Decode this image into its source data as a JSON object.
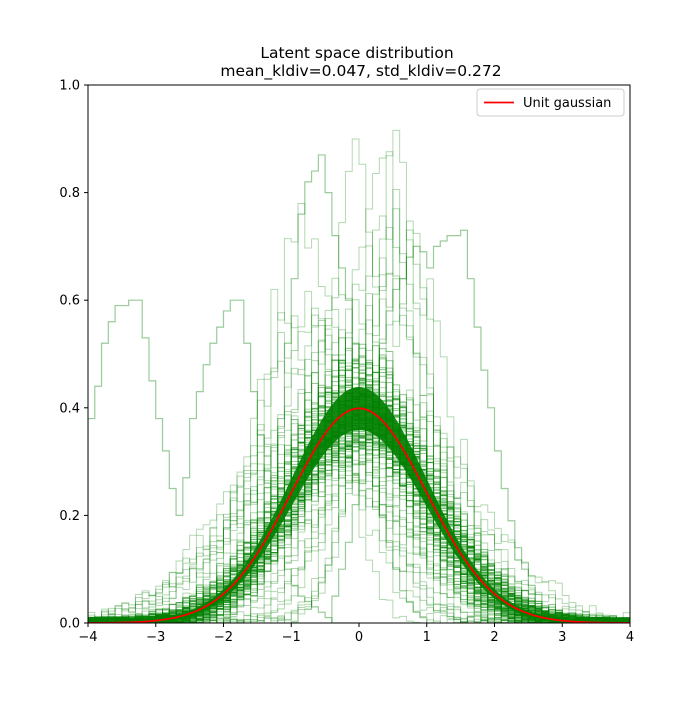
{
  "chart_data": {
    "type": "line",
    "title": "Latent space distribution",
    "subtitle": "mean_kldiv=0.047, std_kldiv=0.272",
    "xlabel": "",
    "ylabel": "",
    "xlim": [
      -4,
      4
    ],
    "ylim": [
      0,
      1.0
    ],
    "xticks": [
      "−4",
      "−3",
      "−2",
      "−1",
      "0",
      "1",
      "2",
      "3",
      "4"
    ],
    "yticks": [
      "0.0",
      "0.2",
      "0.4",
      "0.6",
      "0.8",
      "1.0"
    ],
    "grid": false,
    "legend_position": "top-right",
    "bin_width": 0.1,
    "colors": {
      "histogram": "#008000",
      "reference": "#ff0000"
    },
    "series": [
      {
        "name": "Unit gaussian",
        "kind": "line",
        "color": "#ff0000",
        "x": [
          -4,
          -3.5,
          -3,
          -2.5,
          -2,
          -1.5,
          -1,
          -0.5,
          0,
          0.5,
          1,
          1.5,
          2,
          2.5,
          3,
          3.5,
          4
        ],
        "y": [
          0.0001,
          0.0009,
          0.0044,
          0.0175,
          0.054,
          0.1295,
          0.242,
          0.352,
          0.399,
          0.352,
          0.242,
          0.1295,
          0.054,
          0.0175,
          0.0044,
          0.0009,
          0.0001
        ]
      }
    ],
    "histograms": [
      {
        "kind": "step",
        "color": "#008000",
        "note": "bimodal outlier",
        "bin_centers": [
          -3.95,
          -3.85,
          -3.75,
          -3.65,
          -3.55,
          -3.45,
          -3.35,
          -3.25,
          -3.15,
          -3.05,
          -2.95,
          -2.85,
          -2.75,
          -2.65,
          -2.55,
          -2.45,
          -2.35,
          -2.25,
          -2.15,
          -2.05,
          -1.95,
          -1.85,
          -1.75,
          -1.65,
          -1.55,
          -1.45,
          -1.35,
          -1.25,
          -1.15,
          -1.05,
          -0.95,
          -0.85,
          -0.75,
          -0.65,
          -0.55,
          -0.45,
          -0.35,
          -0.25,
          -0.15,
          -0.05
        ],
        "density": [
          0.38,
          0.44,
          0.52,
          0.56,
          0.59,
          0.59,
          0.6,
          0.6,
          0.53,
          0.45,
          0.38,
          0.32,
          0.25,
          0.2,
          0.27,
          0.38,
          0.43,
          0.48,
          0.52,
          0.55,
          0.58,
          0.6,
          0.6,
          0.52,
          0.43,
          0.35,
          0.26,
          0.2,
          0.14,
          0.1,
          0.07,
          0.05,
          0.04,
          0.03,
          0.02,
          0.01,
          0.0,
          0.0,
          0.0,
          0.0
        ]
      },
      {
        "kind": "step",
        "color": "#008000",
        "note": "right-shifted outlier",
        "bin_centers": [
          -0.35,
          -0.25,
          -0.15,
          -0.05,
          0.05,
          0.15,
          0.25,
          0.35,
          0.45,
          0.55,
          0.65,
          0.75,
          0.85,
          0.95,
          1.05,
          1.15,
          1.25,
          1.35,
          1.45,
          1.55,
          1.65,
          1.75,
          1.85,
          1.95,
          2.05,
          2.15,
          2.25,
          2.35,
          2.45,
          2.55,
          2.65,
          2.75,
          2.85,
          2.95
        ],
        "density": [
          0.05,
          0.1,
          0.15,
          0.22,
          0.3,
          0.38,
          0.45,
          0.52,
          0.58,
          0.62,
          0.64,
          0.68,
          0.7,
          0.69,
          0.66,
          0.7,
          0.71,
          0.72,
          0.72,
          0.73,
          0.64,
          0.55,
          0.47,
          0.4,
          0.32,
          0.25,
          0.19,
          0.14,
          0.1,
          0.07,
          0.04,
          0.02,
          0.01,
          0.0
        ]
      },
      {
        "kind": "step",
        "color": "#008000",
        "note": "tall narrow outlier",
        "bin_centers": [
          -1.55,
          -1.45,
          -1.35,
          -1.25,
          -1.15,
          -1.05,
          -0.95,
          -0.85,
          -0.75,
          -0.65,
          -0.55,
          -0.45,
          -0.35,
          -0.25,
          -0.15,
          -0.05,
          0.05,
          0.15,
          0.25,
          0.35,
          0.45,
          0.55,
          0.65,
          0.75,
          0.85,
          0.95,
          1.05
        ],
        "density": [
          0.05,
          0.1,
          0.18,
          0.27,
          0.38,
          0.52,
          0.64,
          0.76,
          0.82,
          0.84,
          0.87,
          0.8,
          0.72,
          0.66,
          0.6,
          0.52,
          0.45,
          0.35,
          0.27,
          0.2,
          0.15,
          0.1,
          0.06,
          0.04,
          0.02,
          0.01,
          0.0
        ]
      }
    ],
    "ensemble_note": "about one hundred overlapping green step histograms, mostly near the unit gaussian"
  },
  "legend": {
    "label": "Unit gaussian"
  }
}
